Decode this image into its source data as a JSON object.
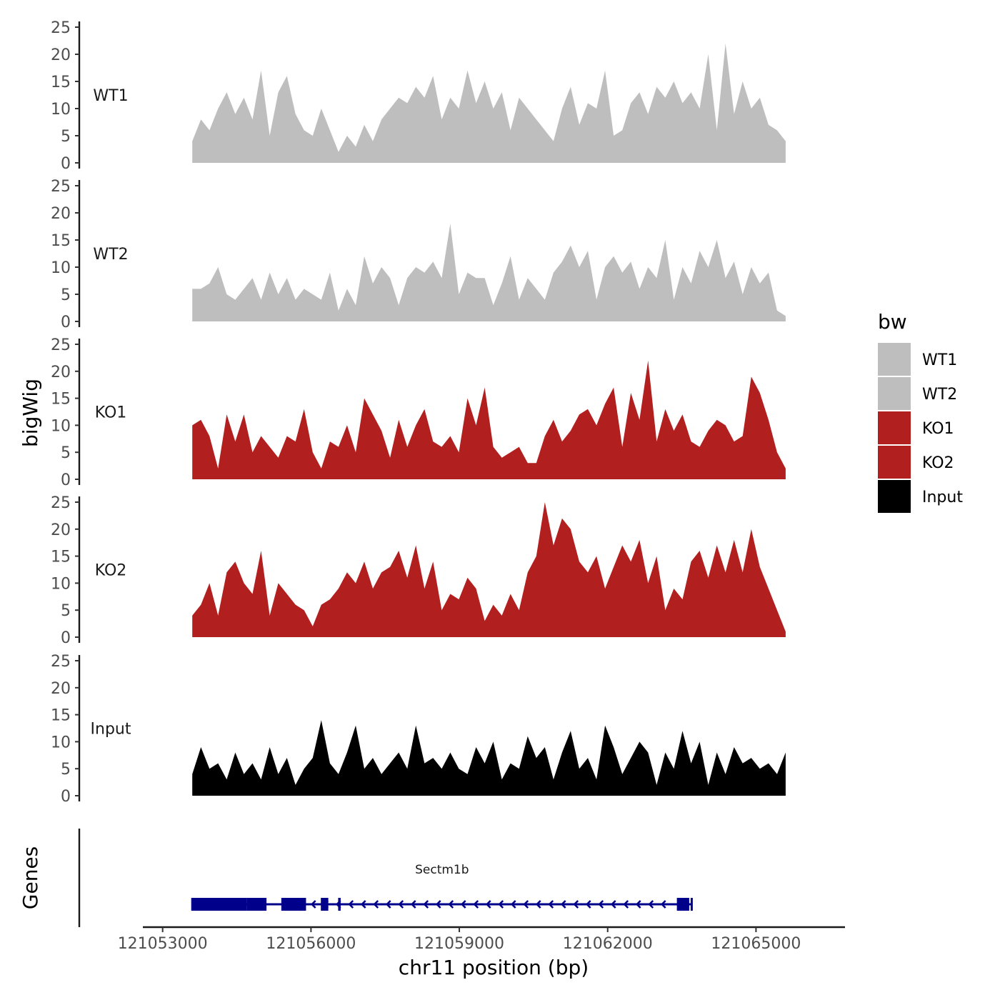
{
  "chart_data": {
    "type": "area",
    "ylabel": "bigWig",
    "ylim": [
      0,
      25
    ],
    "yticks": [
      0,
      5,
      10,
      15,
      20,
      25
    ],
    "xlabel": "chr11 position (bp)",
    "xlim": [
      121052600,
      121066800
    ],
    "xticks": [
      121053000,
      121056000,
      121059000,
      121062000,
      121065000
    ],
    "xtick_labels": [
      "121053000",
      "121056000",
      "121059000",
      "121062000",
      "121065000"
    ],
    "region": [
      121053600,
      121065600
    ],
    "legend": {
      "title": "bw",
      "position": "right",
      "entries": [
        {
          "name": "WT1",
          "color": "#bebebe"
        },
        {
          "name": "WT2",
          "color": "#bebebe"
        },
        {
          "name": "KO1",
          "color": "#b21f1f"
        },
        {
          "name": "KO2",
          "color": "#b21f1f"
        },
        {
          "name": "Input",
          "color": "#000000"
        }
      ]
    },
    "series": [
      {
        "name": "WT1",
        "color": "#bebebe",
        "values": [
          4,
          8,
          6,
          10,
          13,
          9,
          12,
          8,
          17,
          5,
          13,
          16,
          9,
          6,
          5,
          10,
          6,
          2,
          5,
          3,
          7,
          4,
          8,
          10,
          12,
          11,
          14,
          12,
          16,
          8,
          12,
          10,
          17,
          11,
          15,
          10,
          13,
          6,
          12,
          10,
          8,
          6,
          4,
          10,
          14,
          7,
          11,
          10,
          17,
          5,
          6,
          11,
          13,
          9,
          14,
          12,
          15,
          11,
          13,
          10,
          20,
          6,
          22,
          9,
          15,
          10,
          12,
          7,
          6,
          4
        ]
      },
      {
        "name": "WT2",
        "color": "#bebebe",
        "values": [
          6,
          6,
          7,
          10,
          5,
          4,
          6,
          8,
          4,
          9,
          5,
          8,
          4,
          6,
          5,
          4,
          9,
          2,
          6,
          3,
          12,
          7,
          10,
          8,
          3,
          8,
          10,
          9,
          11,
          8,
          18,
          5,
          9,
          8,
          8,
          3,
          7,
          12,
          4,
          8,
          6,
          4,
          9,
          11,
          14,
          10,
          13,
          4,
          10,
          12,
          9,
          11,
          6,
          10,
          8,
          15,
          4,
          10,
          7,
          13,
          10,
          15,
          8,
          11,
          5,
          10,
          7,
          9,
          2,
          1
        ]
      },
      {
        "name": "KO1",
        "color": "#b21f1f",
        "values": [
          10,
          11,
          8,
          2,
          12,
          7,
          12,
          5,
          8,
          6,
          4,
          8,
          7,
          13,
          5,
          2,
          7,
          6,
          10,
          5,
          15,
          12,
          9,
          4,
          11,
          6,
          10,
          13,
          7,
          6,
          8,
          5,
          15,
          10,
          17,
          6,
          4,
          5,
          6,
          3,
          3,
          8,
          11,
          7,
          9,
          12,
          13,
          10,
          14,
          17,
          6,
          16,
          11,
          22,
          7,
          13,
          9,
          12,
          7,
          6,
          9,
          11,
          10,
          7,
          8,
          19,
          16,
          11,
          5,
          2
        ]
      },
      {
        "name": "KO2",
        "color": "#b21f1f",
        "values": [
          4,
          6,
          10,
          4,
          12,
          14,
          10,
          8,
          16,
          4,
          10,
          8,
          6,
          5,
          2,
          6,
          7,
          9,
          12,
          10,
          14,
          9,
          12,
          13,
          16,
          11,
          17,
          9,
          14,
          5,
          8,
          7,
          11,
          9,
          3,
          6,
          4,
          8,
          5,
          12,
          15,
          25,
          17,
          22,
          20,
          14,
          12,
          15,
          9,
          13,
          17,
          14,
          18,
          10,
          15,
          5,
          9,
          7,
          14,
          16,
          11,
          17,
          12,
          18,
          12,
          20,
          13,
          9,
          5,
          1
        ]
      },
      {
        "name": "Input",
        "color": "#000000",
        "values": [
          4,
          9,
          5,
          6,
          3,
          8,
          4,
          6,
          3,
          9,
          4,
          7,
          2,
          5,
          7,
          14,
          6,
          4,
          8,
          13,
          5,
          7,
          4,
          6,
          8,
          5,
          13,
          6,
          7,
          5,
          8,
          5,
          4,
          9,
          6,
          10,
          3,
          6,
          5,
          11,
          7,
          9,
          3,
          8,
          12,
          5,
          7,
          3,
          13,
          9,
          4,
          7,
          10,
          8,
          2,
          8,
          5,
          12,
          6,
          10,
          2,
          8,
          4,
          9,
          6,
          7,
          5,
          6,
          4,
          8
        ]
      }
    ],
    "genes": {
      "label": "Genes",
      "items": [
        {
          "name": "Sectm1b",
          "start": 121053600,
          "end": 121063700,
          "strand": "-",
          "color": "#00008b",
          "thick": [
            [
              121053600,
              121054700
            ],
            [
              121054700,
              121055100
            ],
            [
              121055400,
              121055900
            ],
            [
              121056200,
              121056350
            ],
            [
              121056550,
              121056600
            ],
            [
              121063400,
              121063650
            ]
          ]
        }
      ]
    }
  }
}
